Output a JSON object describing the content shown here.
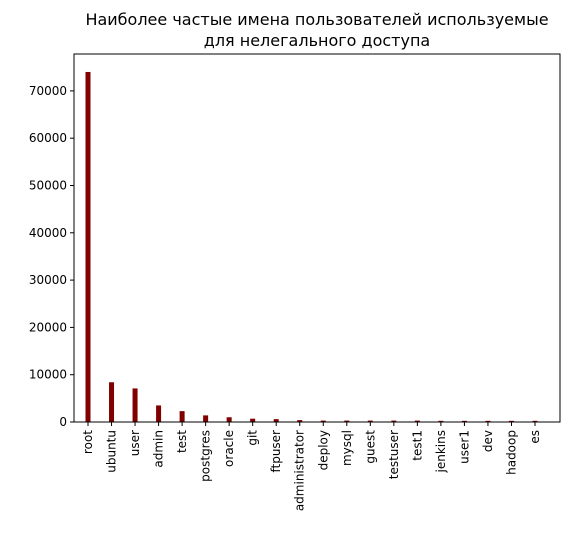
{
  "chart_data": {
    "type": "bar",
    "title_lines": [
      "Наиболее частые имена пользователей используемые",
      "для нелегального доступа"
    ],
    "xlabel": "",
    "ylabel": "",
    "ylim": [
      0,
      77800
    ],
    "y_ticks": [
      0,
      10000,
      20000,
      30000,
      40000,
      50000,
      60000,
      70000
    ],
    "bar_color": "#800000",
    "grid": false,
    "categories": [
      "root",
      "ubuntu",
      "user",
      "admin",
      "test",
      "postgres",
      "oracle",
      "git",
      "ftpuser",
      "administrator",
      "deploy",
      "mysql",
      "guest",
      "testuser",
      "test1",
      "jenkins",
      "user1",
      "dev",
      "hadoop",
      "es"
    ],
    "values": [
      74000,
      8400,
      7100,
      3500,
      2300,
      1400,
      1000,
      700,
      600,
      400,
      300,
      300,
      300,
      300,
      300,
      250,
      250,
      250,
      250,
      250
    ]
  }
}
